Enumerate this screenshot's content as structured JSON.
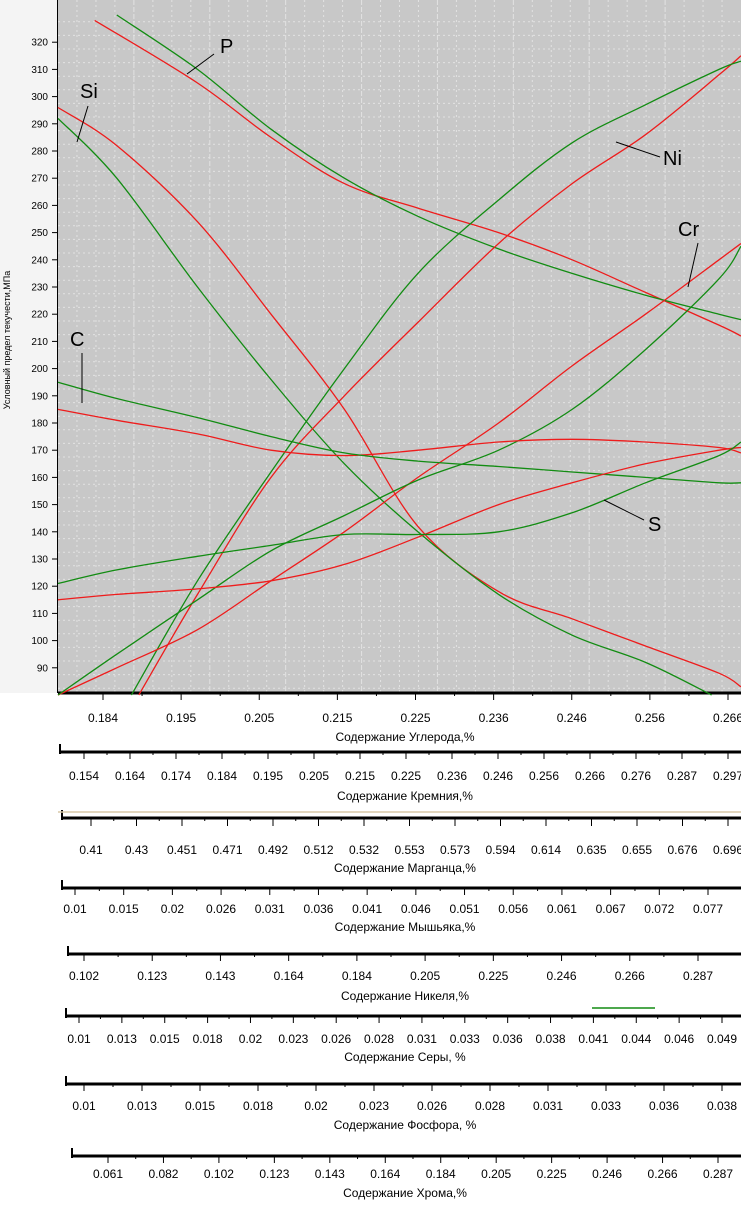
{
  "chart_data": {
    "type": "line",
    "ylabel": "Условный предел текучести,МПа",
    "y_ticks": [
      90,
      100,
      110,
      120,
      130,
      140,
      150,
      160,
      170,
      180,
      190,
      200,
      210,
      220,
      230,
      240,
      250,
      260,
      270,
      280,
      290,
      300,
      310,
      320
    ],
    "ylim": [
      80,
      330
    ],
    "grid": true,
    "colors": {
      "red": "#ee1c1c",
      "green": "#128c12",
      "plot_bg": "#c8c8c8",
      "grid": "#e0e0e0"
    },
    "axes": [
      {
        "title": "Содержание Углерода,%",
        "ticks": [
          "0.184",
          "0.195",
          "0.205",
          "0.215",
          "0.225",
          "0.236",
          "0.246",
          "0.256",
          "0.266"
        ]
      },
      {
        "title": "Содержание Кремния,%",
        "ticks": [
          "0.154",
          "0.164",
          "0.174",
          "0.184",
          "0.195",
          "0.205",
          "0.215",
          "0.225",
          "0.236",
          "0.246",
          "0.256",
          "0.266",
          "0.276",
          "0.287",
          "0.297"
        ]
      },
      {
        "title": "Содержание Марганца,%",
        "ticks": [
          "0.41",
          "0.43",
          "0.451",
          "0.471",
          "0.492",
          "0.512",
          "0.532",
          "0.553",
          "0.573",
          "0.594",
          "0.614",
          "0.635",
          "0.655",
          "0.676",
          "0.696"
        ]
      },
      {
        "title": "Содержание Мышьяка,%",
        "ticks": [
          "0.01",
          "0.015",
          "0.02",
          "0.026",
          "0.031",
          "0.036",
          "0.041",
          "0.046",
          "0.051",
          "0.056",
          "0.061",
          "0.067",
          "0.072",
          "0.077"
        ]
      },
      {
        "title": "Содержание Никеля,%",
        "ticks": [
          "0.102",
          "0.123",
          "0.143",
          "0.164",
          "0.184",
          "0.205",
          "0.225",
          "0.246",
          "0.266",
          "0.287"
        ]
      },
      {
        "title": "Содержание Серы,      %",
        "ticks": [
          "0.01",
          "0.013",
          "0.015",
          "0.018",
          "0.02",
          "0.023",
          "0.026",
          "0.028",
          "0.031",
          "0.033",
          "0.036",
          "0.038",
          "0.041",
          "0.044",
          "0.046",
          "0.049"
        ]
      },
      {
        "title": "Содержание Фосфора,      %",
        "ticks": [
          "0.01",
          "0.013",
          "0.015",
          "0.018",
          "0.02",
          "0.023",
          "0.026",
          "0.028",
          "0.031",
          "0.033",
          "0.036",
          "0.038"
        ]
      },
      {
        "title": "Содержание  Хрома,%",
        "ticks": [
          "0.061",
          "0.082",
          "0.102",
          "0.123",
          "0.143",
          "0.164",
          "0.184",
          "0.205",
          "0.225",
          "0.246",
          "0.266",
          "0.287"
        ]
      }
    ],
    "curve_labels": [
      "P",
      "Si",
      "Ni",
      "Cr",
      "C",
      "S"
    ],
    "series": [
      {
        "name": "P",
        "color": "red",
        "points": [
          [
            0.181,
            328
          ],
          [
            0.195,
            305
          ],
          [
            0.205,
            285
          ],
          [
            0.215,
            268
          ],
          [
            0.225,
            259
          ],
          [
            0.236,
            250
          ],
          [
            0.246,
            240
          ],
          [
            0.256,
            228
          ],
          [
            0.266,
            216
          ],
          [
            0.269,
            212
          ]
        ]
      },
      {
        "name": "P",
        "color": "green",
        "points": [
          [
            0.184,
            330
          ],
          [
            0.195,
            310
          ],
          [
            0.205,
            288
          ],
          [
            0.215,
            270
          ],
          [
            0.225,
            256
          ],
          [
            0.236,
            244
          ],
          [
            0.246,
            235
          ],
          [
            0.256,
            227
          ],
          [
            0.266,
            220
          ],
          [
            0.269,
            218
          ]
        ]
      },
      {
        "name": "Si",
        "color": "red",
        "points": [
          [
            0.176,
            296
          ],
          [
            0.184,
            282
          ],
          [
            0.195,
            254
          ],
          [
            0.205,
            220
          ],
          [
            0.215,
            185
          ],
          [
            0.225,
            142
          ],
          [
            0.236,
            118
          ],
          [
            0.246,
            108
          ],
          [
            0.256,
            98
          ],
          [
            0.266,
            88
          ],
          [
            0.269,
            83
          ]
        ]
      },
      {
        "name": "Si",
        "color": "green",
        "points": [
          [
            0.176,
            292
          ],
          [
            0.184,
            270
          ],
          [
            0.195,
            230
          ],
          [
            0.205,
            196
          ],
          [
            0.215,
            165
          ],
          [
            0.225,
            140
          ],
          [
            0.236,
            117
          ],
          [
            0.246,
            102
          ],
          [
            0.256,
            92
          ],
          [
            0.265,
            80
          ]
        ]
      },
      {
        "name": "Ni",
        "color": "red",
        "points": [
          [
            0.187,
            80
          ],
          [
            0.195,
            117
          ],
          [
            0.205,
            160
          ],
          [
            0.215,
            190
          ],
          [
            0.225,
            217
          ],
          [
            0.236,
            246
          ],
          [
            0.246,
            268
          ],
          [
            0.256,
            286
          ],
          [
            0.266,
            308
          ],
          [
            0.269,
            315
          ]
        ]
      },
      {
        "name": "Ni",
        "color": "green",
        "points": [
          [
            0.186,
            80
          ],
          [
            0.195,
            122
          ],
          [
            0.205,
            162
          ],
          [
            0.215,
            200
          ],
          [
            0.225,
            235
          ],
          [
            0.236,
            262
          ],
          [
            0.246,
            283
          ],
          [
            0.256,
            297
          ],
          [
            0.266,
            310
          ],
          [
            0.269,
            313
          ]
        ]
      },
      {
        "name": "Cr",
        "color": "red",
        "points": [
          [
            0.176,
            80
          ],
          [
            0.184,
            90
          ],
          [
            0.195,
            104
          ],
          [
            0.205,
            122
          ],
          [
            0.215,
            140
          ],
          [
            0.225,
            160
          ],
          [
            0.236,
            180
          ],
          [
            0.246,
            201
          ],
          [
            0.256,
            220
          ],
          [
            0.266,
            240
          ],
          [
            0.269,
            246
          ]
        ]
      },
      {
        "name": "Cr",
        "color": "green",
        "points": [
          [
            0.176,
            80
          ],
          [
            0.184,
            95
          ],
          [
            0.195,
            115
          ],
          [
            0.205,
            133
          ],
          [
            0.215,
            146
          ],
          [
            0.225,
            159
          ],
          [
            0.236,
            170
          ],
          [
            0.246,
            185
          ],
          [
            0.256,
            207
          ],
          [
            0.266,
            233
          ],
          [
            0.269,
            245
          ]
        ]
      },
      {
        "name": "C",
        "color": "red",
        "points": [
          [
            0.176,
            185
          ],
          [
            0.184,
            181
          ],
          [
            0.195,
            176
          ],
          [
            0.205,
            170
          ],
          [
            0.215,
            168
          ],
          [
            0.225,
            170
          ],
          [
            0.236,
            173
          ],
          [
            0.246,
            174
          ],
          [
            0.256,
            173
          ],
          [
            0.266,
            171
          ],
          [
            0.269,
            169
          ]
        ]
      },
      {
        "name": "C",
        "color": "green",
        "points": [
          [
            0.176,
            195
          ],
          [
            0.184,
            189
          ],
          [
            0.195,
            182
          ],
          [
            0.205,
            175
          ],
          [
            0.215,
            169
          ],
          [
            0.225,
            166
          ],
          [
            0.236,
            164
          ],
          [
            0.246,
            162
          ],
          [
            0.256,
            160
          ],
          [
            0.266,
            158
          ],
          [
            0.269,
            158
          ]
        ]
      },
      {
        "name": "S",
        "color": "red",
        "points": [
          [
            0.176,
            115
          ],
          [
            0.184,
            117
          ],
          [
            0.195,
            119
          ],
          [
            0.205,
            122
          ],
          [
            0.215,
            128
          ],
          [
            0.225,
            138
          ],
          [
            0.236,
            150
          ],
          [
            0.246,
            158
          ],
          [
            0.256,
            165
          ],
          [
            0.266,
            170
          ],
          [
            0.269,
            171
          ]
        ]
      },
      {
        "name": "S",
        "color": "green",
        "points": [
          [
            0.176,
            121
          ],
          [
            0.184,
            126
          ],
          [
            0.195,
            131
          ],
          [
            0.205,
            135
          ],
          [
            0.215,
            139
          ],
          [
            0.225,
            139
          ],
          [
            0.236,
            140
          ],
          [
            0.246,
            147
          ],
          [
            0.256,
            158
          ],
          [
            0.266,
            168
          ],
          [
            0.269,
            173
          ]
        ]
      }
    ],
    "xlim": [
      0.176,
      0.269
    ]
  }
}
